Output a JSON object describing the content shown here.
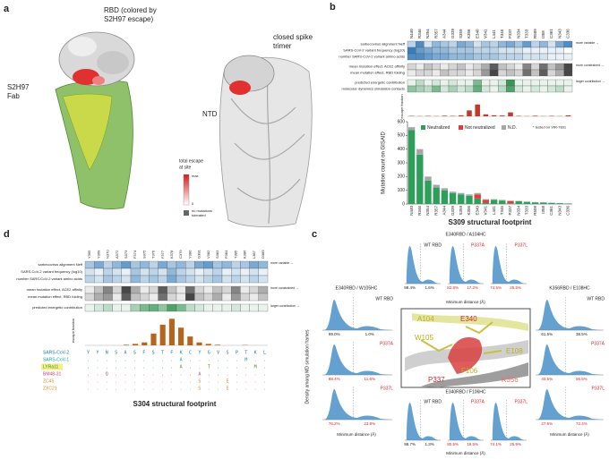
{
  "panel_a": {
    "label": "a",
    "rbd_label": [
      "RBD (colored by",
      "S2H97 escape)"
    ],
    "fab_label": [
      "S2H97",
      "Fab"
    ],
    "trimer_label": [
      "closed spike",
      "trimer"
    ],
    "ntd_label": "NTD",
    "legend_title": [
      "total escape",
      "at site"
    ],
    "legend_max": "max",
    "legend_min": "0",
    "legend_none": [
      "no mutations",
      "tolerated"
    ]
  },
  "panel_b": {
    "label": "b",
    "row_labels": [
      "sarbecovirus alignment Neff",
      "SARS-CoV-2 variant frequency (log10)",
      "number SARS-CoV-2 variant amino acids",
      "mean mutation effect, ACE2 affinity",
      "mean mutation effect, RBD folding",
      "predicted energetic contribution",
      "molecular dynamics simulation contacts"
    ],
    "row_groups": [
      0,
      0,
      0,
      1,
      1,
      2,
      2
    ],
    "group_colors": [
      "#2171b5",
      "#333333",
      "#238b45"
    ],
    "notes": [
      "more variable →",
      "more constrained →",
      "larger contribution →"
    ],
    "heatmap": [
      [
        0.3,
        0.8,
        0.2,
        0.5,
        0.4,
        0.3,
        0.6,
        0.5,
        0.2,
        0.4,
        0.3,
        0.5,
        0.6,
        0.4,
        0.7,
        0.3,
        0.5,
        0.2,
        0.6,
        0.8
      ],
      [
        0.9,
        0.7,
        0.6,
        0.5,
        0.5,
        0.4,
        0.4,
        0.4,
        0.3,
        0.3,
        0.3,
        0.2,
        0.2,
        0.2,
        0.1,
        0.1,
        0.1,
        0.1,
        0.1,
        0
      ],
      [
        0.8,
        0.8,
        0.7,
        0.6,
        0.6,
        0.5,
        0.5,
        0.5,
        0.4,
        0.4,
        0.4,
        0.3,
        0.3,
        0.3,
        0.2,
        0.2,
        0.2,
        0.1,
        0.1,
        0.1
      ],
      [
        0.2,
        0.1,
        0.3,
        0.2,
        0.1,
        0.2,
        0.3,
        0.1,
        0.2,
        0.4,
        0.8,
        0.3,
        0.2,
        0.1,
        0.6,
        0.2,
        0.7,
        0.3,
        0.5,
        0.9
      ],
      [
        0.1,
        0.2,
        0.2,
        0.1,
        0.3,
        0.2,
        0.2,
        0.1,
        0.2,
        0.5,
        0.9,
        0.2,
        0.3,
        0.2,
        0.7,
        0.3,
        0.8,
        0.2,
        0.4,
        0.9
      ],
      [
        0.1,
        0.3,
        0.1,
        0.2,
        0.1,
        0.2,
        0.1,
        0.1,
        0.6,
        0.1,
        0.1,
        0.2,
        0.9,
        0.1,
        0.1,
        0.1,
        0.1,
        0.1,
        0.1,
        0.1
      ],
      [
        0.5,
        0.4,
        0.3,
        0.6,
        0.2,
        0.4,
        0.2,
        0.3,
        0.7,
        0.2,
        0.1,
        0.3,
        0.8,
        0.2,
        0.1,
        0.2,
        0.1,
        0.2,
        0.3,
        0.1
      ]
    ],
    "escape_label": "escape fraction",
    "escape_ylim": [
      0,
      1
    ],
    "escape_color": "#c0392b",
    "escape": [
      0.02,
      0.01,
      0.02,
      0.01,
      0.03,
      0.02,
      0.05,
      0.3,
      0.6,
      0.1,
      0.05,
      0.04,
      0.2,
      0.02,
      0.01,
      0.03,
      0.01,
      0.02,
      0.01,
      0.05
    ]
  },
  "chart_data": {
    "type": "bar",
    "stacked": true,
    "y_label": "Mutation count on GISAID",
    "x_label": "S309 structural footprint",
    "note": "* tested on VIR-7831",
    "categories": [
      "N440",
      "R346",
      "N354",
      "R357",
      "A344",
      "G339",
      "S359",
      "K356",
      "E340",
      "V341",
      "L441",
      "T345",
      "P337",
      "N334",
      "T333",
      "R509",
      "I358",
      "C361",
      "N343",
      "C336"
    ],
    "series": [
      {
        "name": "Neutralized",
        "color": "#2e9e5b",
        "values": [
          540,
          360,
          170,
          120,
          100,
          80,
          70,
          60,
          40,
          10,
          30,
          25,
          5,
          20,
          15,
          12,
          10,
          8,
          6,
          3
        ]
      },
      {
        "name": "Not neutralized",
        "color": "#e8383d",
        "values": [
          0,
          0,
          0,
          0,
          0,
          0,
          0,
          0,
          30,
          20,
          0,
          0,
          15,
          0,
          0,
          0,
          0,
          0,
          0,
          0
        ]
      },
      {
        "name": "N.D.",
        "color": "#a6a6a6",
        "values": [
          20,
          40,
          30,
          20,
          15,
          10,
          10,
          10,
          10,
          5,
          5,
          5,
          5,
          3,
          3,
          2,
          2,
          2,
          1,
          1
        ]
      }
    ],
    "ylim": [
      0,
      600
    ],
    "yticks": [
      0,
      100,
      200,
      300,
      400,
      500,
      600
    ]
  },
  "panel_c": {
    "label": "c",
    "y_label": "Density among MD simulation frames",
    "curve_color": "#4a90c8",
    "plots": [
      {
        "title": "E340RBD / A104HC",
        "axis_label": "Minimum distance (Å)",
        "rows": [
          {
            "name": "WT RBD",
            "color": "#222222",
            "left": "98.4%",
            "right": "1.6%"
          },
          {
            "name": "P337A",
            "color": "#d62728",
            "left": "82.8%",
            "right": "17.2%"
          },
          {
            "name": "P337L",
            "color": "#d62728",
            "left": "74.5%",
            "right": "25.5%"
          }
        ]
      },
      {
        "title": "E340RBD / W105HC",
        "axis_label": "Minimum distance (Å)",
        "rows": [
          {
            "name": "WT RBD",
            "color": "#222222",
            "left": "99.0%",
            "right": "1.0%"
          },
          {
            "name": "P337A",
            "color": "#d62728",
            "left": "88.4%",
            "right": "11.6%"
          },
          {
            "name": "P337L",
            "color": "#d62728",
            "left": "76.2%",
            "right": "23.8%"
          }
        ]
      },
      {
        "title": "K356RBD / E108HC",
        "axis_label": "Minimum distance (Å)",
        "rows": [
          {
            "name": "WT RBD",
            "color": "#222222",
            "left": "61.5%",
            "right": "38.5%"
          },
          {
            "name": "P337A",
            "color": "#d62728",
            "left": "43.5%",
            "right": "56.5%"
          },
          {
            "name": "P337L",
            "color": "#d62728",
            "left": "27.6%",
            "right": "72.4%"
          }
        ]
      },
      {
        "title": "E340RBD / F106HC",
        "axis_label": "Minimum distance (Å)",
        "rows": [
          {
            "name": "WT RBD",
            "color": "#222222",
            "left": "98.7%",
            "right": "1.3%"
          },
          {
            "name": "P337A",
            "color": "#d62728",
            "left": "80.5%",
            "right": "19.5%"
          },
          {
            "name": "P337L",
            "color": "#d62728",
            "left": "74.1%",
            "right": "25.9%"
          }
        ]
      }
    ],
    "residues": [
      {
        "label": "A104",
        "color": "#b8b020"
      },
      {
        "label": "E340",
        "color": "#d62728"
      },
      {
        "label": "W105",
        "color": "#b8b020"
      },
      {
        "label": "E108",
        "color": "#b8b020"
      },
      {
        "label": "F106",
        "color": "#b8b020"
      },
      {
        "label": "P337",
        "color": "#d62728"
      },
      {
        "label": "K356",
        "color": "#e07a6a"
      }
    ]
  },
  "panel_d": {
    "label": "d",
    "columns": [
      "Y365",
      "Y369",
      "N370",
      "A372",
      "S373",
      "F374",
      "S375",
      "T376",
      "F377",
      "K378",
      "C379",
      "Y380",
      "G381",
      "V382",
      "S383",
      "P384",
      "T385",
      "K386",
      "L387",
      "D389"
    ],
    "row_labels": [
      "sarbecovirus alignment Neff",
      "SARS-CoV-2 variant frequency (log10)",
      "number SARS-CoV-2 variant amino acids",
      "mean mutation effect, ACE2 affinity",
      "mean mutation effect, RBD folding",
      "predicted energetic contribution"
    ],
    "row_groups": [
      0,
      0,
      0,
      1,
      1,
      2
    ],
    "group_colors": [
      "#2171b5",
      "#333333",
      "#238b45"
    ],
    "notes": [
      "more variable →",
      "more constrained →",
      "larger contribution →"
    ],
    "heatmap": [
      [
        0.4,
        0.6,
        0.3,
        0.5,
        0.7,
        0.4,
        0.5,
        0.3,
        0.6,
        0.4,
        0.5,
        0.3,
        0.6,
        0.7,
        0.4,
        0.5,
        0.3,
        0.4,
        0.6,
        0.5
      ],
      [
        0.2,
        0.1,
        0.3,
        0.2,
        0.1,
        0.4,
        0.2,
        0.3,
        0.2,
        0.5,
        0.3,
        0.2,
        0.1,
        0.2,
        0.3,
        0.1,
        0.2,
        0.1,
        0.2,
        0.1
      ],
      [
        0.3,
        0.2,
        0.4,
        0.3,
        0.2,
        0.5,
        0.3,
        0.4,
        0.3,
        0.6,
        0.4,
        0.3,
        0.2,
        0.3,
        0.4,
        0.2,
        0.3,
        0.2,
        0.3,
        0.2
      ],
      [
        0.1,
        0.3,
        0.6,
        0.2,
        0.9,
        0.4,
        0.1,
        0.2,
        0.8,
        0.3,
        0.1,
        0.7,
        0.2,
        0.1,
        0.3,
        0.2,
        0.6,
        0.1,
        0.2,
        0.4
      ],
      [
        0.2,
        0.4,
        0.5,
        0.1,
        0.8,
        0.3,
        0.2,
        0.1,
        0.7,
        0.2,
        0.1,
        0.9,
        0.3,
        0.2,
        0.4,
        0.1,
        0.5,
        0.2,
        0.1,
        0.3
      ],
      [
        0.1,
        0.2,
        0.3,
        0.1,
        0.1,
        0.4,
        0.6,
        0.7,
        0.5,
        0.8,
        0.6,
        0.3,
        0.2,
        0.1,
        0.1,
        0.1,
        0.2,
        0.1,
        0.1,
        0.1
      ]
    ],
    "escape_label": "escape fraction",
    "escape_ylim": [
      0,
      1
    ],
    "escape_color": "#b5651d",
    "escape": [
      0,
      0,
      0,
      0,
      0.02,
      0.05,
      0.1,
      0.4,
      0.7,
      0.9,
      0.6,
      0.3,
      0.1,
      0.05,
      0.02,
      0,
      0,
      0.01,
      0,
      0
    ],
    "alignment": [
      {
        "name": "SARS-CoV-2",
        "color": "#1f77b4",
        "sequence": "YYNSASFSTFKCYGVSPTKL"
      },
      {
        "name": "SARS-CoV-1",
        "color": "#17a2a2",
        "sequence": "..........A......M.."
      },
      {
        "name": "LYRa11",
        "color": "#4a8c2a",
        "sequence": "..........A..T....M."
      },
      {
        "name": "BM48-31",
        "color": "#c2477a",
        "sequence": "..Q.........A......."
      },
      {
        "name": "ZC45",
        "color": "#e08a1e",
        "sequence": "............S..E...."
      },
      {
        "name": "ZXC21",
        "color": "#e08a1e",
        "sequence": "............S..E...."
      }
    ],
    "footprint_label": "S304 structural footprint"
  }
}
